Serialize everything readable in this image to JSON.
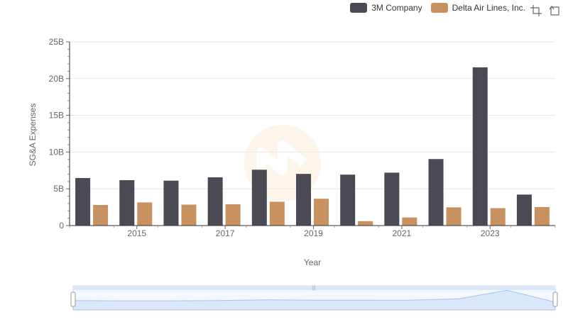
{
  "chart_data": {
    "type": "bar",
    "title": "",
    "xlabel": "Year",
    "ylabel": "SG&A Expenses",
    "ylim": [
      0,
      25000000000
    ],
    "yticks": [
      "0",
      "5B",
      "10B",
      "15B",
      "20B",
      "25B"
    ],
    "xticks": [
      "2015",
      "2017",
      "2019",
      "2021",
      "2023"
    ],
    "categories": [
      "2014",
      "2015",
      "2016",
      "2017",
      "2018",
      "2019",
      "2020",
      "2021",
      "2022",
      "2023",
      "2024"
    ],
    "series": [
      {
        "name": "3M Company",
        "color": "#4a4954",
        "values": [
          6470000000,
          6180000000,
          6110000000,
          6570000000,
          7600000000,
          7030000000,
          6930000000,
          7200000000,
          9050000000,
          21530000000,
          4220000000
        ]
      },
      {
        "name": "Delta Air Lines, Inc.",
        "color": "#c89160",
        "values": [
          2800000000,
          3150000000,
          2850000000,
          2900000000,
          3240000000,
          3650000000,
          600000000,
          1100000000,
          2480000000,
          2370000000,
          2520000000
        ]
      }
    ],
    "grid": true,
    "legend_position": "top-right"
  },
  "colors": {
    "grid": "#e6e6e6",
    "axis": "#333333",
    "zoom_fill": "#dbe7fb",
    "zoom_border": "#b7c8ea"
  },
  "toolbar": {
    "zoom_icon": "zoom-select-icon",
    "reset_icon": "zoom-reset-icon"
  }
}
